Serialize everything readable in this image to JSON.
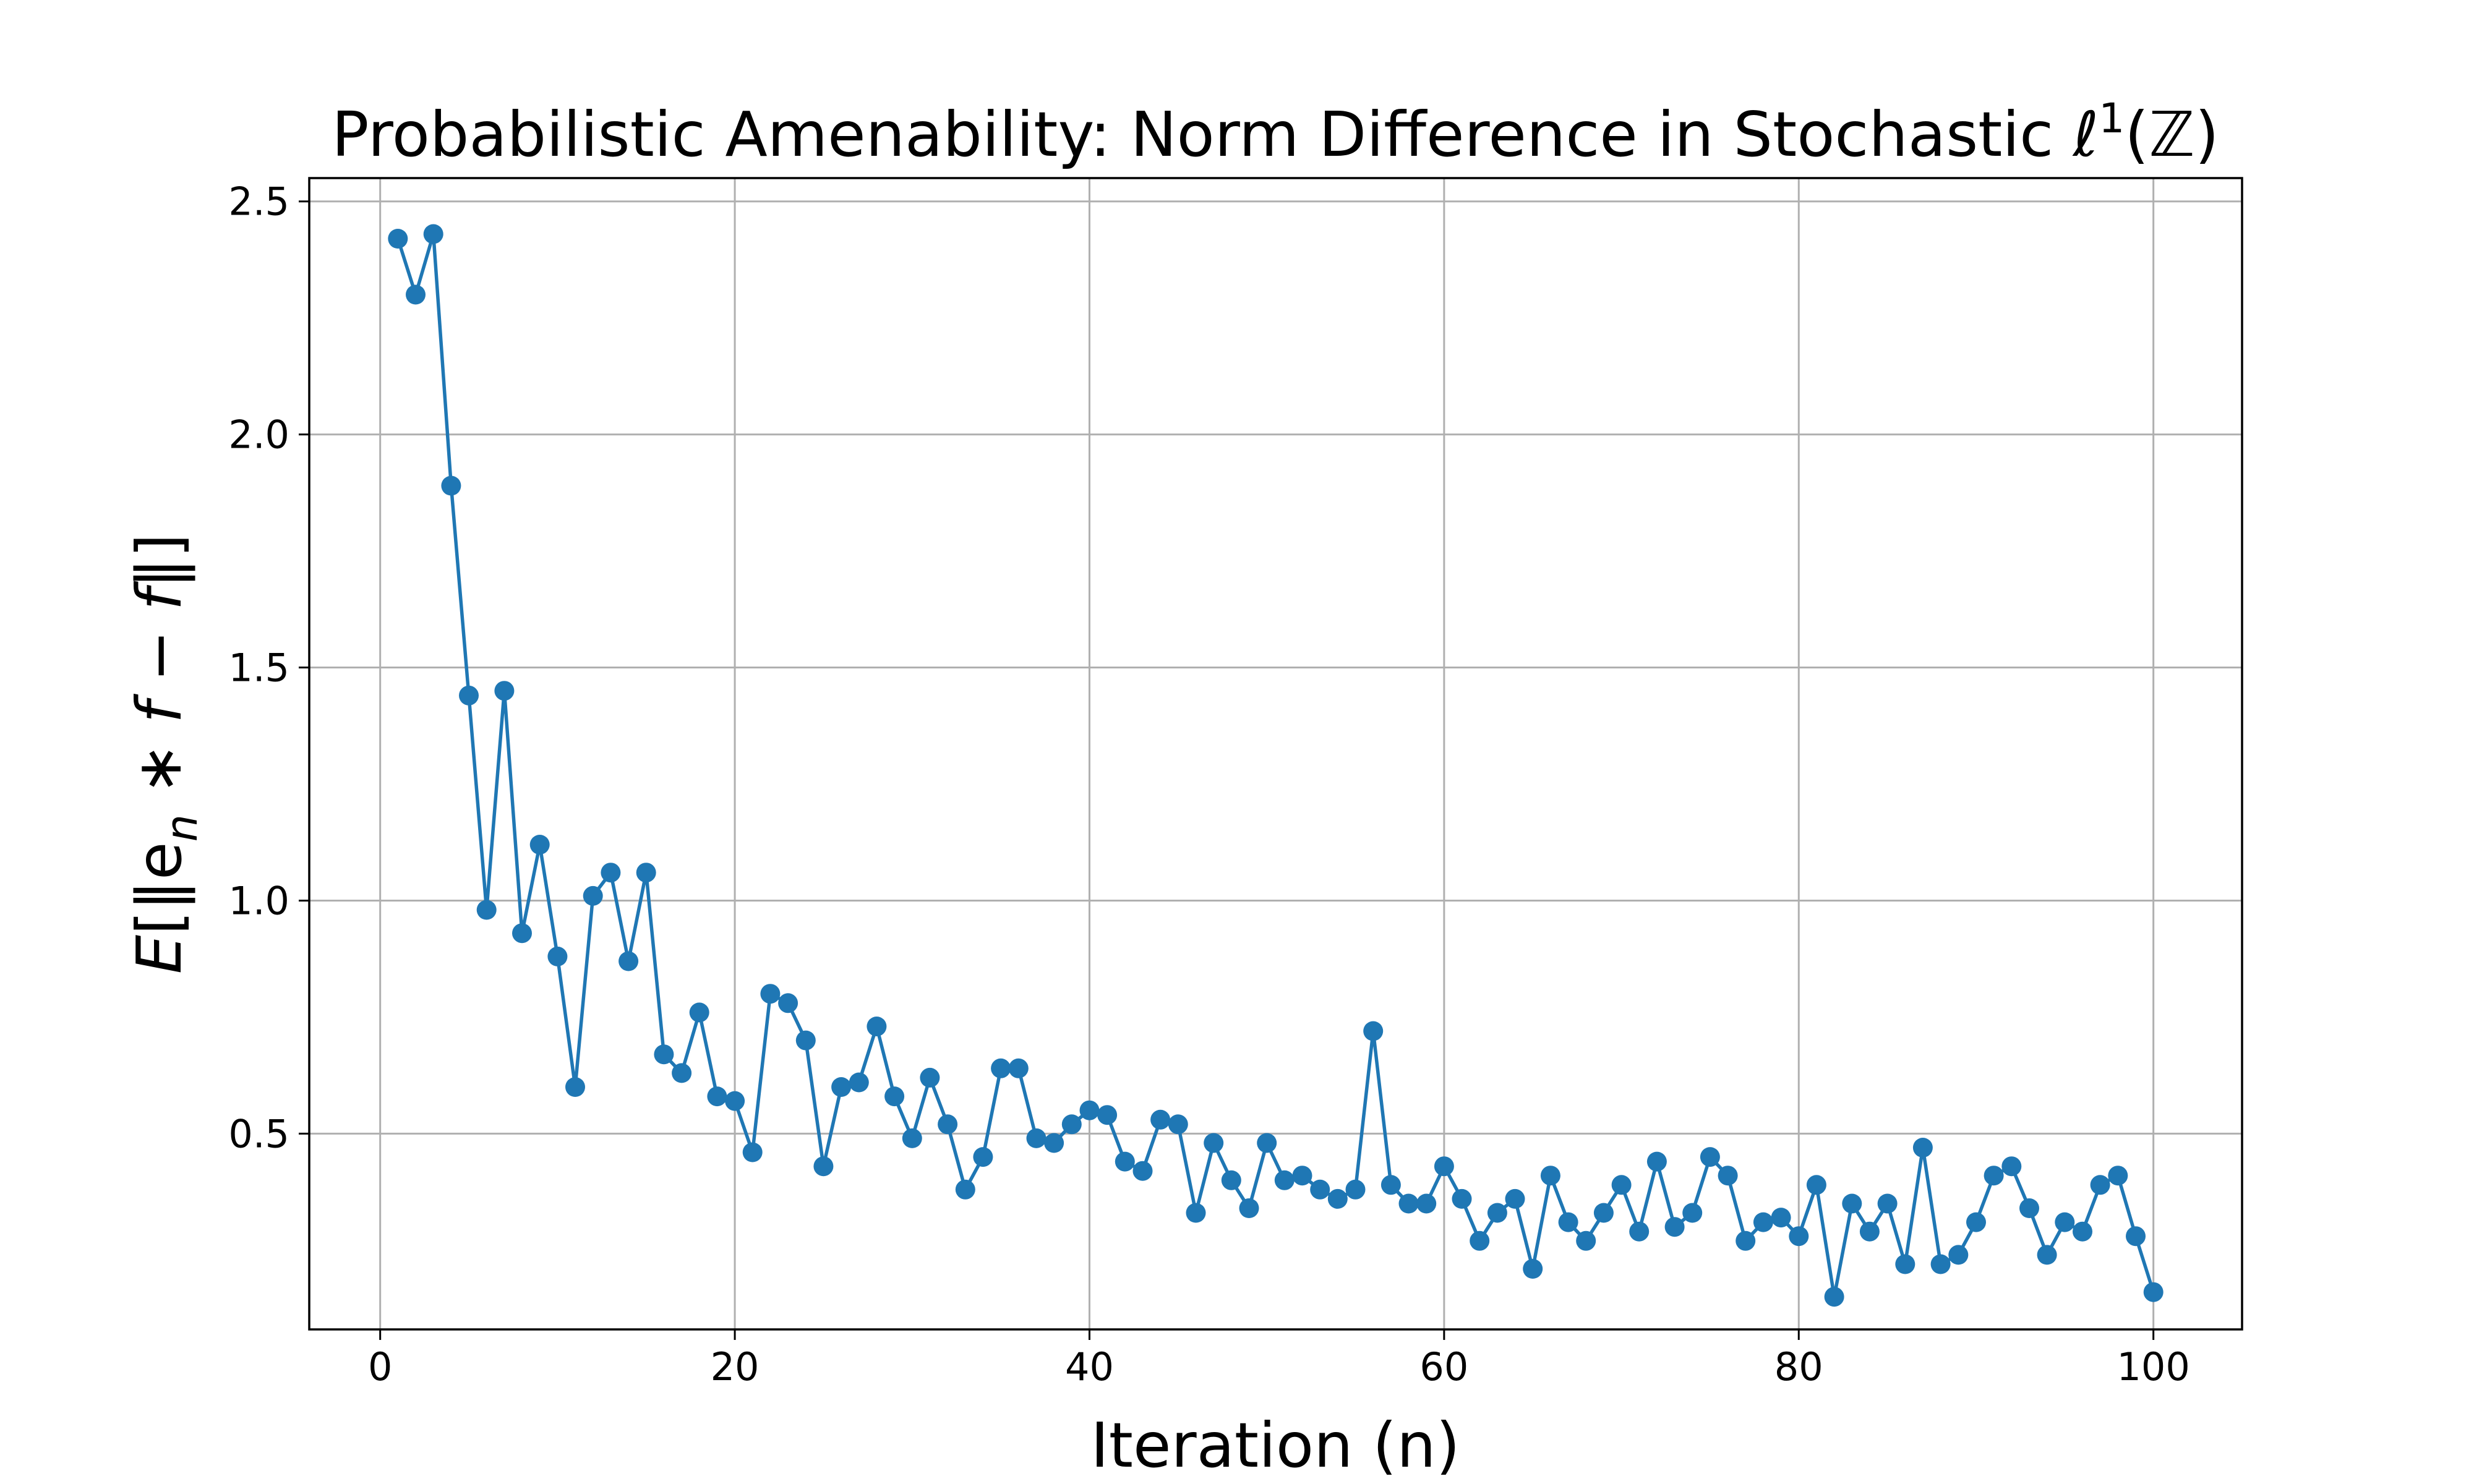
{
  "chart_data": {
    "type": "line",
    "title": "Probabilistic Amenability: Norm Difference in Stochastic ℓ¹(ℤ)",
    "title_parts": {
      "main": "Probabilistic Amenability: Norm Difference in Stochastic ℓ",
      "sup": "1",
      "tail": "(ℤ)"
    },
    "xlabel": "Iteration (n)",
    "ylabel": "E[‖eₙ ∗ f − f‖]",
    "ylabel_parts": {
      "a": "E",
      "b": "[‖e",
      "sub": "n",
      "c": " ∗ ",
      "d": "f",
      "e": " − ",
      "f": "f",
      "g": "‖]"
    },
    "xlim": [
      -4,
      105
    ],
    "ylim": [
      0.08,
      2.55
    ],
    "xticks": [
      0,
      20,
      40,
      60,
      80,
      100
    ],
    "yticks": [
      0.5,
      1.0,
      1.5,
      2.0,
      2.5
    ],
    "xtick_labels": [
      "0",
      "20",
      "40",
      "60",
      "80",
      "100"
    ],
    "ytick_labels": [
      "0.5",
      "1.0",
      "1.5",
      "2.0",
      "2.5"
    ],
    "grid": true,
    "legend": "none",
    "series_color": "#1f77b4",
    "x": [
      1,
      2,
      3,
      4,
      5,
      6,
      7,
      8,
      9,
      10,
      11,
      12,
      13,
      14,
      15,
      16,
      17,
      18,
      19,
      20,
      21,
      22,
      23,
      24,
      25,
      26,
      27,
      28,
      29,
      30,
      31,
      32,
      33,
      34,
      35,
      36,
      37,
      38,
      39,
      40,
      41,
      42,
      43,
      44,
      45,
      46,
      47,
      48,
      49,
      50,
      51,
      52,
      53,
      54,
      55,
      56,
      57,
      58,
      59,
      60,
      61,
      62,
      63,
      64,
      65,
      66,
      67,
      68,
      69,
      70,
      71,
      72,
      73,
      74,
      75,
      76,
      77,
      78,
      79,
      80,
      81,
      82,
      83,
      84,
      85,
      86,
      87,
      88,
      89,
      90,
      91,
      92,
      93,
      94,
      95,
      96,
      97,
      98,
      99,
      100
    ],
    "y": [
      2.42,
      2.3,
      2.43,
      1.89,
      1.44,
      0.98,
      1.45,
      0.93,
      1.12,
      0.88,
      0.6,
      1.01,
      1.06,
      0.87,
      1.06,
      0.67,
      0.63,
      0.76,
      0.58,
      0.57,
      0.46,
      0.8,
      0.78,
      0.7,
      0.43,
      0.6,
      0.61,
      0.73,
      0.58,
      0.49,
      0.62,
      0.52,
      0.38,
      0.45,
      0.64,
      0.64,
      0.49,
      0.48,
      0.52,
      0.55,
      0.54,
      0.44,
      0.42,
      0.53,
      0.52,
      0.33,
      0.48,
      0.4,
      0.34,
      0.48,
      0.4,
      0.41,
      0.38,
      0.36,
      0.38,
      0.72,
      0.39,
      0.35,
      0.35,
      0.43,
      0.36,
      0.27,
      0.33,
      0.36,
      0.21,
      0.41,
      0.31,
      0.27,
      0.33,
      0.39,
      0.29,
      0.44,
      0.3,
      0.33,
      0.45,
      0.41,
      0.27,
      0.31,
      0.32,
      0.28,
      0.39,
      0.15,
      0.35,
      0.29,
      0.35,
      0.22,
      0.47,
      0.22,
      0.24,
      0.31,
      0.41,
      0.43,
      0.34,
      0.24,
      0.31,
      0.29,
      0.39,
      0.41,
      0.28,
      0.16
    ]
  }
}
